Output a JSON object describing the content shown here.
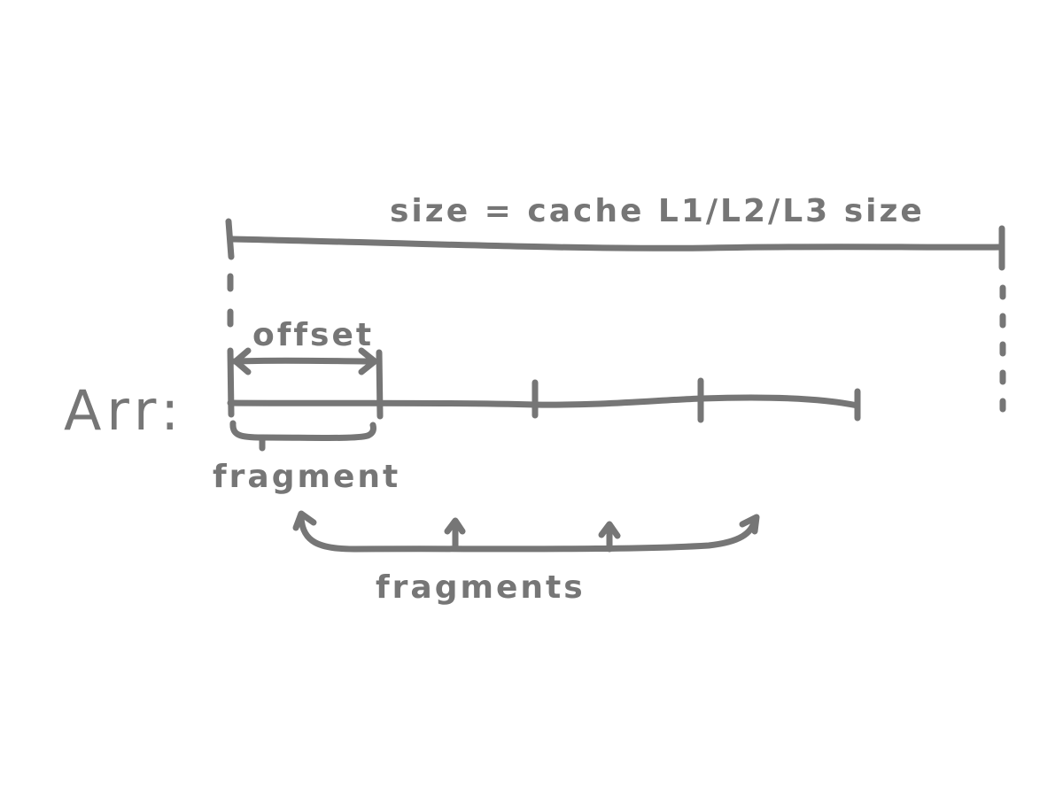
{
  "diagram": {
    "array_label": "Arr:",
    "size_label": "size = cache L1/L2/L3 size",
    "offset_label": "offset",
    "fragment_label": "fragment",
    "fragments_label": "fragments",
    "ink_color": "#767676",
    "background_color": "#ffffff"
  }
}
